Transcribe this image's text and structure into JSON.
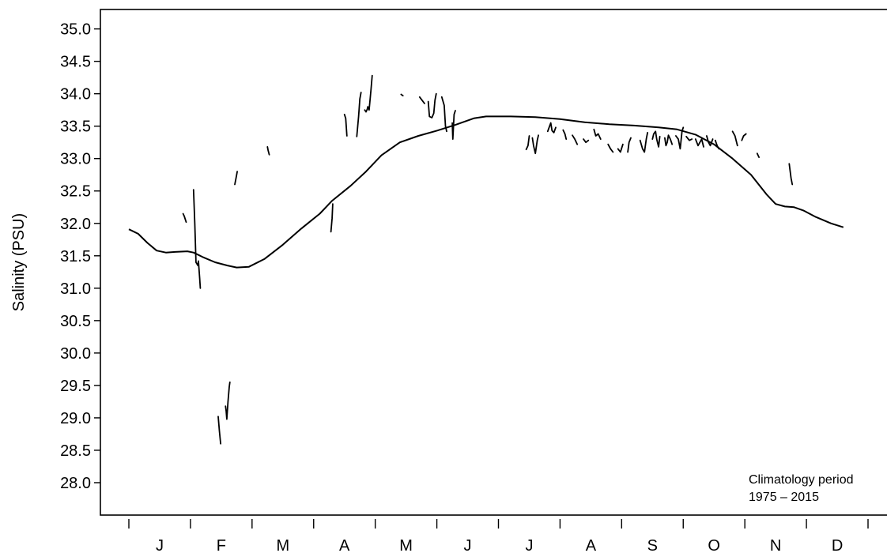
{
  "chart_data": {
    "type": "line",
    "ylabel": "Salinity (PSU)",
    "ylim": [
      27.5,
      35.3
    ],
    "y_ticks": [
      "28.0",
      "28.5",
      "29.0",
      "29.5",
      "30.0",
      "30.5",
      "31.0",
      "31.5",
      "32.0",
      "32.5",
      "33.0",
      "33.5",
      "34.0",
      "34.5",
      "35.0"
    ],
    "xlim": [
      0,
      12
    ],
    "month_boundaries": [
      0,
      1,
      2,
      3,
      4,
      5,
      6,
      7,
      8,
      9,
      10,
      11,
      12
    ],
    "month_labels": [
      "J",
      "F",
      "M",
      "A",
      "M",
      "J",
      "J",
      "A",
      "S",
      "O",
      "N",
      "D"
    ],
    "series": [
      {
        "kind": "climatology",
        "points": [
          [
            0.0,
            31.91
          ],
          [
            0.15,
            31.84
          ],
          [
            0.3,
            31.7
          ],
          [
            0.45,
            31.58
          ],
          [
            0.6,
            31.55
          ],
          [
            0.75,
            31.56
          ],
          [
            0.95,
            31.57
          ],
          [
            1.05,
            31.55
          ],
          [
            1.2,
            31.48
          ],
          [
            1.4,
            31.4
          ],
          [
            1.6,
            31.35
          ],
          [
            1.75,
            31.32
          ],
          [
            1.95,
            31.33
          ],
          [
            2.2,
            31.45
          ],
          [
            2.5,
            31.67
          ],
          [
            2.8,
            31.92
          ],
          [
            3.1,
            32.15
          ],
          [
            3.3,
            32.35
          ],
          [
            3.6,
            32.58
          ],
          [
            3.85,
            32.8
          ],
          [
            4.1,
            33.05
          ],
          [
            4.4,
            33.25
          ],
          [
            4.7,
            33.35
          ],
          [
            5.0,
            33.43
          ],
          [
            5.3,
            33.52
          ],
          [
            5.6,
            33.62
          ],
          [
            5.8,
            33.65
          ],
          [
            6.2,
            33.65
          ],
          [
            6.6,
            33.64
          ],
          [
            7.0,
            33.61
          ],
          [
            7.4,
            33.56
          ],
          [
            7.8,
            33.53
          ],
          [
            8.2,
            33.51
          ],
          [
            8.6,
            33.48
          ],
          [
            8.9,
            33.45
          ],
          [
            9.2,
            33.37
          ],
          [
            9.5,
            33.22
          ],
          [
            9.8,
            33.0
          ],
          [
            10.1,
            32.75
          ],
          [
            10.35,
            32.45
          ],
          [
            10.5,
            32.3
          ],
          [
            10.65,
            32.26
          ],
          [
            10.8,
            32.25
          ],
          [
            10.95,
            32.2
          ],
          [
            11.15,
            32.1
          ],
          [
            11.4,
            32.0
          ],
          [
            11.6,
            31.94
          ]
        ]
      },
      {
        "kind": "observations",
        "segments": [
          [
            [
              0.88,
              32.15
            ],
            [
              0.9,
              32.11
            ],
            [
              0.92,
              32.05
            ],
            [
              0.93,
              32.02
            ]
          ],
          [
            [
              1.05,
              32.52
            ],
            [
              1.07,
              32.0
            ],
            [
              1.09,
              31.4
            ],
            [
              1.12,
              31.35
            ],
            [
              1.13,
              31.42
            ],
            [
              1.15,
              31.15
            ],
            [
              1.16,
              31.0
            ]
          ],
          [
            [
              1.45,
              29.02
            ],
            [
              1.47,
              28.8
            ],
            [
              1.49,
              28.6
            ]
          ],
          [
            [
              1.57,
              29.18
            ],
            [
              1.58,
              29.1
            ],
            [
              1.59,
              28.98
            ],
            [
              1.61,
              29.25
            ],
            [
              1.63,
              29.48
            ],
            [
              1.64,
              29.55
            ]
          ],
          [
            [
              1.72,
              32.6
            ],
            [
              1.74,
              32.7
            ],
            [
              1.76,
              32.8
            ]
          ],
          [
            [
              2.25,
              33.18
            ],
            [
              2.26,
              33.13
            ],
            [
              2.28,
              33.06
            ]
          ],
          [
            [
              3.28,
              31.87
            ],
            [
              3.3,
              32.08
            ],
            [
              3.31,
              32.3
            ]
          ],
          [
            [
              3.5,
              33.68
            ],
            [
              3.52,
              33.62
            ],
            [
              3.54,
              33.35
            ]
          ],
          [
            [
              3.7,
              33.34
            ],
            [
              3.73,
              33.65
            ],
            [
              3.75,
              33.92
            ],
            [
              3.77,
              34.02
            ]
          ],
          [
            [
              3.83,
              33.75
            ],
            [
              3.85,
              33.72
            ],
            [
              3.87,
              33.76
            ],
            [
              3.88,
              33.8
            ],
            [
              3.9,
              33.75
            ],
            [
              3.93,
              34.05
            ],
            [
              3.95,
              34.28
            ]
          ],
          [
            [
              4.42,
              33.99
            ],
            [
              4.45,
              33.97
            ]
          ],
          [
            [
              4.72,
              33.95
            ],
            [
              4.76,
              33.9
            ],
            [
              4.8,
              33.85
            ]
          ],
          [
            [
              4.86,
              33.88
            ],
            [
              4.88,
              33.65
            ],
            [
              4.92,
              33.63
            ],
            [
              4.95,
              33.7
            ],
            [
              4.97,
              33.9
            ],
            [
              4.99,
              34.0
            ]
          ],
          [
            [
              5.08,
              33.95
            ],
            [
              5.12,
              33.82
            ],
            [
              5.14,
              33.5
            ],
            [
              5.16,
              33.42
            ]
          ],
          [
            [
              5.25,
              33.55
            ],
            [
              5.26,
              33.3
            ],
            [
              5.28,
              33.68
            ],
            [
              5.3,
              33.74
            ]
          ],
          [
            [
              6.45,
              33.14
            ],
            [
              6.48,
              33.2
            ],
            [
              6.5,
              33.35
            ]
          ],
          [
            [
              6.55,
              33.32
            ],
            [
              6.57,
              33.2
            ],
            [
              6.6,
              33.08
            ],
            [
              6.63,
              33.28
            ],
            [
              6.65,
              33.36
            ]
          ],
          [
            [
              6.8,
              33.42
            ],
            [
              6.83,
              33.5
            ],
            [
              6.85,
              33.55
            ],
            [
              6.87,
              33.43
            ],
            [
              6.9,
              33.4
            ],
            [
              6.93,
              33.48
            ]
          ],
          [
            [
              7.05,
              33.44
            ],
            [
              7.08,
              33.38
            ],
            [
              7.1,
              33.3
            ]
          ],
          [
            [
              7.2,
              33.36
            ],
            [
              7.24,
              33.3
            ],
            [
              7.28,
              33.22
            ]
          ],
          [
            [
              7.38,
              33.3
            ],
            [
              7.42,
              33.25
            ],
            [
              7.46,
              33.28
            ]
          ],
          [
            [
              7.55,
              33.45
            ],
            [
              7.58,
              33.35
            ],
            [
              7.62,
              33.38
            ],
            [
              7.66,
              33.3
            ]
          ],
          [
            [
              7.78,
              33.22
            ],
            [
              7.82,
              33.15
            ],
            [
              7.86,
              33.1
            ]
          ],
          [
            [
              7.94,
              33.15
            ],
            [
              7.98,
              33.1
            ],
            [
              8.02,
              33.22
            ]
          ],
          [
            [
              8.1,
              33.1
            ],
            [
              8.12,
              33.25
            ],
            [
              8.15,
              33.32
            ]
          ],
          [
            [
              8.3,
              33.28
            ],
            [
              8.34,
              33.15
            ],
            [
              8.37,
              33.1
            ],
            [
              8.4,
              33.3
            ],
            [
              8.42,
              33.4
            ]
          ],
          [
            [
              8.5,
              33.3
            ],
            [
              8.52,
              33.38
            ],
            [
              8.55,
              33.42
            ],
            [
              8.57,
              33.3
            ],
            [
              8.6,
              33.18
            ],
            [
              8.62,
              33.34
            ]
          ],
          [
            [
              8.7,
              33.32
            ],
            [
              8.72,
              33.2
            ],
            [
              8.74,
              33.25
            ],
            [
              8.76,
              33.36
            ],
            [
              8.79,
              33.3
            ],
            [
              8.82,
              33.22
            ]
          ],
          [
            [
              8.88,
              33.35
            ],
            [
              8.92,
              33.3
            ],
            [
              8.95,
              33.15
            ],
            [
              8.98,
              33.42
            ],
            [
              9.0,
              33.48
            ]
          ],
          [
            [
              9.05,
              33.34
            ],
            [
              9.1,
              33.28
            ],
            [
              9.14,
              33.3
            ]
          ],
          [
            [
              9.2,
              33.3
            ],
            [
              9.24,
              33.2
            ],
            [
              9.27,
              33.25
            ],
            [
              9.3,
              33.3
            ],
            [
              9.33,
              33.18
            ]
          ],
          [
            [
              9.38,
              33.35
            ],
            [
              9.41,
              33.25
            ],
            [
              9.44,
              33.2
            ],
            [
              9.48,
              33.3
            ]
          ],
          [
            [
              9.52,
              33.28
            ],
            [
              9.55,
              33.2
            ],
            [
              9.58,
              33.15
            ]
          ],
          [
            [
              9.8,
              33.42
            ],
            [
              9.84,
              33.35
            ],
            [
              9.88,
              33.2
            ]
          ],
          [
            [
              9.95,
              33.28
            ],
            [
              9.98,
              33.35
            ],
            [
              10.02,
              33.38
            ]
          ],
          [
            [
              10.2,
              33.08
            ],
            [
              10.23,
              33.02
            ]
          ],
          [
            [
              10.72,
              32.92
            ],
            [
              10.75,
              32.7
            ],
            [
              10.77,
              32.6
            ]
          ]
        ]
      }
    ],
    "annotation_line1": "Climatology period",
    "annotation_line2": "1975  – 2015"
  }
}
